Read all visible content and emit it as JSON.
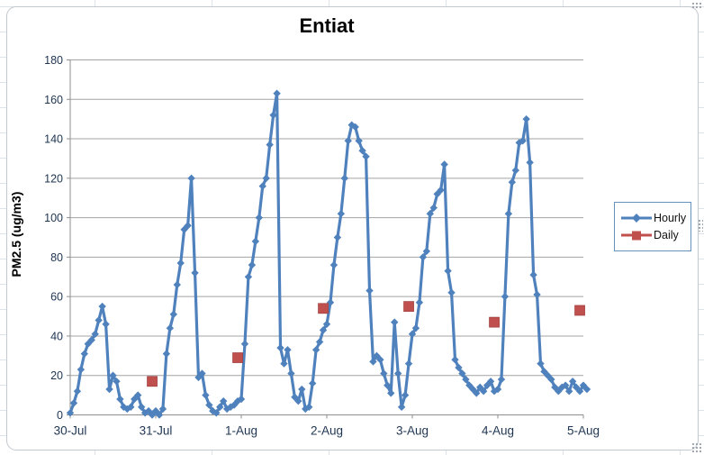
{
  "chart": {
    "title": "Entiat",
    "y_axis": {
      "label": "PM2.5 (ug/m3)",
      "min": 0,
      "max": 180,
      "step": 20,
      "ticks": [
        "0",
        "20",
        "40",
        "60",
        "80",
        "100",
        "120",
        "140",
        "160",
        "180"
      ]
    },
    "x_axis": {
      "labels": [
        "30-Jul",
        "31-Jul",
        "1-Aug",
        "2-Aug",
        "3-Aug",
        "4-Aug",
        "5-Aug"
      ]
    },
    "legend": [
      {
        "name": "Hourly",
        "color": "#4F81BD",
        "marker": "diamond"
      },
      {
        "name": "Daily",
        "color": "#C0504D",
        "marker": "square"
      }
    ],
    "colors": {
      "hourly": "#4F81BD",
      "daily": "#C0504D",
      "gridline": "#a3a3a3",
      "axis": "#8e8e8e",
      "tick_text": "#1e3552"
    }
  },
  "chart_data": {
    "type": "line",
    "title": "Entiat",
    "xlabel": "",
    "ylabel": "PM2.5 (ug/m3)",
    "ylim": [
      0,
      180
    ],
    "x_tick_labels": [
      "30-Jul",
      "31-Jul",
      "1-Aug",
      "2-Aug",
      "3-Aug",
      "4-Aug",
      "5-Aug"
    ],
    "grid": true,
    "legend_position": "right",
    "series": [
      {
        "name": "Hourly",
        "marker": "diamond",
        "color": "#4F81BD",
        "x_unit": "hours starting 30-Jul 00:00, 1-hour step",
        "values": [
          1,
          6,
          12,
          23,
          31,
          36,
          38,
          41,
          48,
          55,
          46,
          13,
          20,
          17,
          8,
          4,
          3,
          4,
          8,
          10,
          4,
          1,
          2,
          0,
          2,
          0,
          3,
          31,
          44,
          51,
          66,
          77,
          94,
          96,
          120,
          72,
          19,
          21,
          10,
          5,
          2,
          1,
          4,
          7,
          3,
          4,
          5,
          7,
          8,
          36,
          70,
          76,
          88,
          100,
          116,
          120,
          137,
          152,
          163,
          34,
          26,
          33,
          21,
          9,
          7,
          13,
          3,
          4,
          16,
          33,
          37,
          43,
          46,
          57,
          76,
          90,
          102,
          120,
          139,
          147,
          146,
          139,
          134,
          131,
          63,
          27,
          30,
          28,
          21,
          15,
          11,
          47,
          21,
          4,
          10,
          26,
          41,
          44,
          57,
          80,
          83,
          102,
          105,
          112,
          114,
          127,
          73,
          62,
          28,
          24,
          21,
          18,
          15,
          13,
          11,
          14,
          12,
          15,
          17,
          12,
          13,
          18,
          60,
          102,
          118,
          124,
          138,
          139,
          150,
          128,
          71,
          61,
          26,
          22,
          20,
          18,
          14,
          12,
          14,
          15,
          12,
          17,
          14,
          12,
          15,
          13
        ]
      },
      {
        "name": "Daily",
        "marker": "square",
        "color": "#C0504D",
        "x_unit": "plotted at ~23:00 of each day",
        "points": [
          {
            "date": "30-Jul",
            "value": 17
          },
          {
            "date": "31-Jul",
            "value": 29
          },
          {
            "date": "1-Aug",
            "value": 54
          },
          {
            "date": "2-Aug",
            "value": 55
          },
          {
            "date": "3-Aug",
            "value": 47
          },
          {
            "date": "4-Aug",
            "value": 53
          }
        ]
      }
    ]
  }
}
